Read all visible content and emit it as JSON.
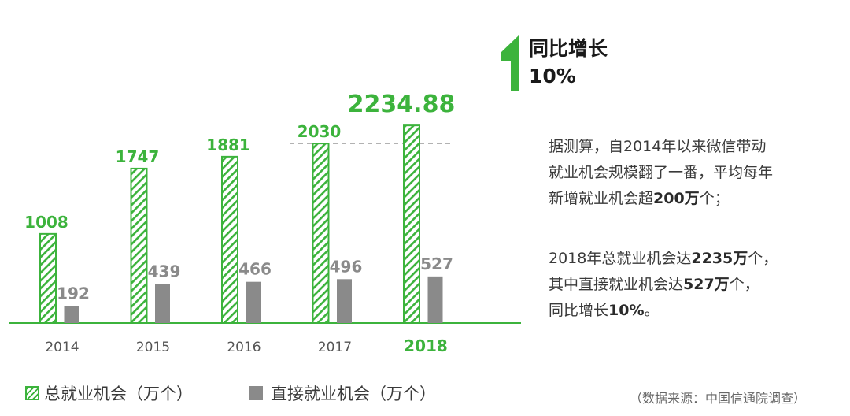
{
  "chart_data": {
    "type": "bar",
    "categories": [
      "2014",
      "2015",
      "2016",
      "2017",
      "2018"
    ],
    "highlight_category": "2018",
    "series": [
      {
        "name": "总就业机会（万个）",
        "values": [
          1008,
          1747,
          1881,
          2030,
          2234.88
        ],
        "color": "#3cb33c",
        "pattern": "diagonal-hatch"
      },
      {
        "name": "直接就业机会（万个）",
        "values": [
          192,
          439,
          466,
          496,
          527
        ],
        "color": "#8a8a8a"
      }
    ],
    "value_labels": {
      "total": [
        "1008",
        "1747",
        "1881",
        "2030",
        "2234.88"
      ],
      "direct": [
        "192",
        "439",
        "466",
        "496",
        "527"
      ]
    },
    "reference_line": {
      "value": 2030,
      "style": "dashed"
    },
    "ylim": [
      0,
      2450
    ],
    "grid": false,
    "legend_position": "bottom-left",
    "colors": {
      "axis": "#3cb33c",
      "highlight_text": "#3cb33c",
      "tick_text": "#555555",
      "ref_line": "#999999"
    }
  },
  "growth": {
    "label": "同比增长",
    "value": "10%",
    "arrow_icon": "up-arrow-icon",
    "arrow_color": "#3cb33c"
  },
  "description": {
    "p1": {
      "l1": "据测算，自2014年以来微信带动",
      "l2": "就业机会规模翻了一番，平均每年",
      "l3_a": "新增就业机会超",
      "l3_b": "200万",
      "l3_c": "个；"
    },
    "p2": {
      "l1_a": "2018年总就业机会达",
      "l1_b": "2235万",
      "l1_c": "个，",
      "l2_a": "其中直接就业机会达",
      "l2_b": "527万",
      "l2_c": "个，",
      "l3_a": "同比增长",
      "l3_b": "10%",
      "l3_c": "。"
    }
  },
  "legend": {
    "total": "总就业机会（万个）",
    "direct": "直接就业机会（万个）"
  },
  "source": "（数据来源：中国信通院调查）"
}
